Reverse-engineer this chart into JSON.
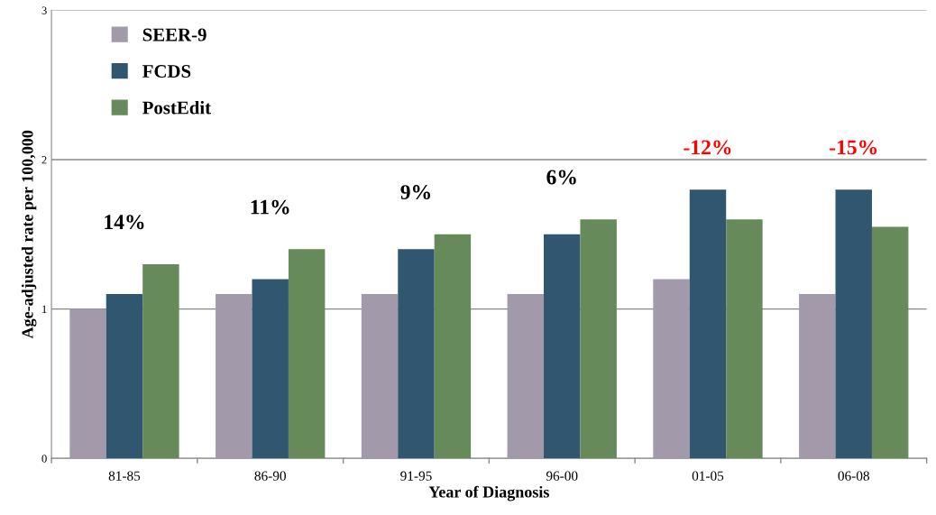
{
  "chart_data": {
    "type": "bar",
    "xlabel": "Year of Diagnosis",
    "ylabel": "Age-adjusted rate per 100,000",
    "categories": [
      "81-85",
      "86-90",
      "91-95",
      "96-00",
      "01-05",
      "06-08"
    ],
    "series": [
      {
        "name": "SEER-9",
        "color": "#a29aab",
        "values": [
          1.0,
          1.1,
          1.1,
          1.1,
          1.2,
          1.1
        ]
      },
      {
        "name": "FCDS",
        "color": "#31566f",
        "values": [
          1.1,
          1.2,
          1.4,
          1.5,
          1.8,
          1.8
        ]
      },
      {
        "name": "PostEdit",
        "color": "#678a5b",
        "values": [
          1.3,
          1.4,
          1.5,
          1.6,
          1.6,
          1.55
        ]
      }
    ],
    "annotations": [
      "14%",
      "11%",
      "9%",
      "6%",
      "-12%",
      "-15%"
    ],
    "ylim": [
      0,
      3
    ],
    "yticks": [
      0,
      1,
      2,
      3
    ],
    "grid": "y",
    "legend": "top left"
  }
}
